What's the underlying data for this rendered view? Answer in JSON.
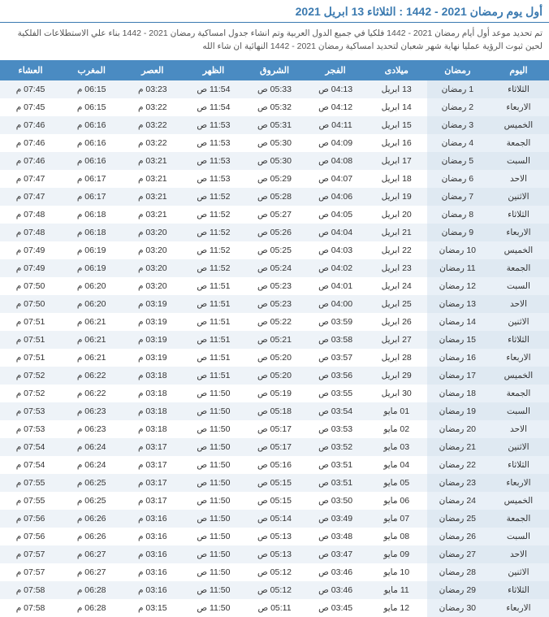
{
  "header": {
    "title": "أول يوم رمضان 2021 - 1442 : الثلاثاء 13 ابريل 2021",
    "intro": "تم تحديد موعد أول أيام رمضان 2021 - 1442 فلكيا في جميع الدول العربية وتم انشاء جدول امساكية رمضان 2021 - 1442 بناء علي الاستطلاعات الفلكية لحين ثبوت الرؤية عمليا نهاية شهر شعبان لتحديد امساكية رمضان 2021 - 1442 النهائية ان شاء الله"
  },
  "columns": [
    "اليوم",
    "رمضان",
    "ميلادى",
    "الفجر",
    "الشروق",
    "الظهر",
    "العصر",
    "المغرب",
    "العشاء"
  ],
  "suffix": {
    "am": " ص",
    "pm": " م"
  },
  "rows": [
    {
      "day": "الثلاثاء",
      "ram": "1 رمضان",
      "greg": "13 ابريل",
      "fajr": "04:13",
      "shur": "05:33",
      "dhuhr": "11:54",
      "asr": "03:23",
      "magh": "06:15",
      "isha": "07:45"
    },
    {
      "day": "الاربعاء",
      "ram": "2 رمضان",
      "greg": "14 ابريل",
      "fajr": "04:12",
      "shur": "05:32",
      "dhuhr": "11:54",
      "asr": "03:22",
      "magh": "06:15",
      "isha": "07:45"
    },
    {
      "day": "الخميس",
      "ram": "3 رمضان",
      "greg": "15 ابريل",
      "fajr": "04:11",
      "shur": "05:31",
      "dhuhr": "11:53",
      "asr": "03:22",
      "magh": "06:16",
      "isha": "07:46"
    },
    {
      "day": "الجمعة",
      "ram": "4 رمضان",
      "greg": "16 ابريل",
      "fajr": "04:09",
      "shur": "05:30",
      "dhuhr": "11:53",
      "asr": "03:22",
      "magh": "06:16",
      "isha": "07:46"
    },
    {
      "day": "السبت",
      "ram": "5 رمضان",
      "greg": "17 ابريل",
      "fajr": "04:08",
      "shur": "05:30",
      "dhuhr": "11:53",
      "asr": "03:21",
      "magh": "06:16",
      "isha": "07:46"
    },
    {
      "day": "الاحد",
      "ram": "6 رمضان",
      "greg": "18 ابريل",
      "fajr": "04:07",
      "shur": "05:29",
      "dhuhr": "11:53",
      "asr": "03:21",
      "magh": "06:17",
      "isha": "07:47"
    },
    {
      "day": "الاثنين",
      "ram": "7 رمضان",
      "greg": "19 ابريل",
      "fajr": "04:06",
      "shur": "05:28",
      "dhuhr": "11:52",
      "asr": "03:21",
      "magh": "06:17",
      "isha": "07:47"
    },
    {
      "day": "الثلاثاء",
      "ram": "8 رمضان",
      "greg": "20 ابريل",
      "fajr": "04:05",
      "shur": "05:27",
      "dhuhr": "11:52",
      "asr": "03:21",
      "magh": "06:18",
      "isha": "07:48"
    },
    {
      "day": "الاربعاء",
      "ram": "9 رمضان",
      "greg": "21 ابريل",
      "fajr": "04:04",
      "shur": "05:26",
      "dhuhr": "11:52",
      "asr": "03:20",
      "magh": "06:18",
      "isha": "07:48"
    },
    {
      "day": "الخميس",
      "ram": "10 رمضان",
      "greg": "22 ابريل",
      "fajr": "04:03",
      "shur": "05:25",
      "dhuhr": "11:52",
      "asr": "03:20",
      "magh": "06:19",
      "isha": "07:49"
    },
    {
      "day": "الجمعة",
      "ram": "11 رمضان",
      "greg": "23 ابريل",
      "fajr": "04:02",
      "shur": "05:24",
      "dhuhr": "11:52",
      "asr": "03:20",
      "magh": "06:19",
      "isha": "07:49"
    },
    {
      "day": "السبت",
      "ram": "12 رمضان",
      "greg": "24 ابريل",
      "fajr": "04:01",
      "shur": "05:23",
      "dhuhr": "11:51",
      "asr": "03:20",
      "magh": "06:20",
      "isha": "07:50"
    },
    {
      "day": "الاحد",
      "ram": "13 رمضان",
      "greg": "25 ابريل",
      "fajr": "04:00",
      "shur": "05:23",
      "dhuhr": "11:51",
      "asr": "03:19",
      "magh": "06:20",
      "isha": "07:50"
    },
    {
      "day": "الاثنين",
      "ram": "14 رمضان",
      "greg": "26 ابريل",
      "fajr": "03:59",
      "shur": "05:22",
      "dhuhr": "11:51",
      "asr": "03:19",
      "magh": "06:21",
      "isha": "07:51"
    },
    {
      "day": "الثلاثاء",
      "ram": "15 رمضان",
      "greg": "27 ابريل",
      "fajr": "03:58",
      "shur": "05:21",
      "dhuhr": "11:51",
      "asr": "03:19",
      "magh": "06:21",
      "isha": "07:51"
    },
    {
      "day": "الاربعاء",
      "ram": "16 رمضان",
      "greg": "28 ابريل",
      "fajr": "03:57",
      "shur": "05:20",
      "dhuhr": "11:51",
      "asr": "03:19",
      "magh": "06:21",
      "isha": "07:51"
    },
    {
      "day": "الخميس",
      "ram": "17 رمضان",
      "greg": "29 ابريل",
      "fajr": "03:56",
      "shur": "05:20",
      "dhuhr": "11:51",
      "asr": "03:18",
      "magh": "06:22",
      "isha": "07:52"
    },
    {
      "day": "الجمعة",
      "ram": "18 رمضان",
      "greg": "30 ابريل",
      "fajr": "03:55",
      "shur": "05:19",
      "dhuhr": "11:50",
      "asr": "03:18",
      "magh": "06:22",
      "isha": "07:52"
    },
    {
      "day": "السبت",
      "ram": "19 رمضان",
      "greg": "01 مايو",
      "fajr": "03:54",
      "shur": "05:18",
      "dhuhr": "11:50",
      "asr": "03:18",
      "magh": "06:23",
      "isha": "07:53"
    },
    {
      "day": "الاحد",
      "ram": "20 رمضان",
      "greg": "02 مايو",
      "fajr": "03:53",
      "shur": "05:17",
      "dhuhr": "11:50",
      "asr": "03:18",
      "magh": "06:23",
      "isha": "07:53"
    },
    {
      "day": "الاثنين",
      "ram": "21 رمضان",
      "greg": "03 مايو",
      "fajr": "03:52",
      "shur": "05:17",
      "dhuhr": "11:50",
      "asr": "03:17",
      "magh": "06:24",
      "isha": "07:54"
    },
    {
      "day": "الثلاثاء",
      "ram": "22 رمضان",
      "greg": "04 مايو",
      "fajr": "03:51",
      "shur": "05:16",
      "dhuhr": "11:50",
      "asr": "03:17",
      "magh": "06:24",
      "isha": "07:54"
    },
    {
      "day": "الاربعاء",
      "ram": "23 رمضان",
      "greg": "05 مايو",
      "fajr": "03:51",
      "shur": "05:15",
      "dhuhr": "11:50",
      "asr": "03:17",
      "magh": "06:25",
      "isha": "07:55"
    },
    {
      "day": "الخميس",
      "ram": "24 رمضان",
      "greg": "06 مايو",
      "fajr": "03:50",
      "shur": "05:15",
      "dhuhr": "11:50",
      "asr": "03:17",
      "magh": "06:25",
      "isha": "07:55"
    },
    {
      "day": "الجمعة",
      "ram": "25 رمضان",
      "greg": "07 مايو",
      "fajr": "03:49",
      "shur": "05:14",
      "dhuhr": "11:50",
      "asr": "03:16",
      "magh": "06:26",
      "isha": "07:56"
    },
    {
      "day": "السبت",
      "ram": "26 رمضان",
      "greg": "08 مايو",
      "fajr": "03:48",
      "shur": "05:13",
      "dhuhr": "11:50",
      "asr": "03:16",
      "magh": "06:26",
      "isha": "07:56"
    },
    {
      "day": "الاحد",
      "ram": "27 رمضان",
      "greg": "09 مايو",
      "fajr": "03:47",
      "shur": "05:13",
      "dhuhr": "11:50",
      "asr": "03:16",
      "magh": "06:27",
      "isha": "07:57"
    },
    {
      "day": "الاثنين",
      "ram": "28 رمضان",
      "greg": "10 مايو",
      "fajr": "03:46",
      "shur": "05:12",
      "dhuhr": "11:50",
      "asr": "03:16",
      "magh": "06:27",
      "isha": "07:57"
    },
    {
      "day": "الثلاثاء",
      "ram": "29 رمضان",
      "greg": "11 مايو",
      "fajr": "03:46",
      "shur": "05:12",
      "dhuhr": "11:50",
      "asr": "03:16",
      "magh": "06:28",
      "isha": "07:58"
    },
    {
      "day": "الاربعاء",
      "ram": "30 رمضان",
      "greg": "12 مايو",
      "fajr": "03:45",
      "shur": "05:11",
      "dhuhr": "11:50",
      "asr": "03:15",
      "magh": "06:28",
      "isha": "07:58"
    }
  ],
  "style": {
    "header_bg": "#4a8bc2",
    "header_fg": "#ffffff",
    "row_odd_bg": "#eef3f8",
    "row_even_bg": "#ffffff",
    "first_cols_bg": "#dfe9f2",
    "title_color": "#3b7ab0",
    "font_family": "Tahoma"
  }
}
